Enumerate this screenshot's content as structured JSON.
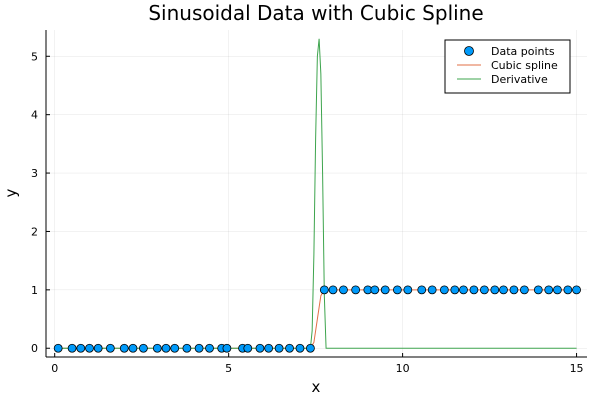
{
  "chart_data": {
    "type": "line",
    "title": "Sinusoidal Data with Cubic Spline",
    "xlabel": "x",
    "ylabel": "y",
    "xlim": [
      -0.25,
      15.3
    ],
    "ylim": [
      -0.15,
      5.45
    ],
    "xticks": [
      0,
      5,
      10,
      15
    ],
    "xtick_labels": [
      "0",
      "5",
      "10",
      "15"
    ],
    "yticks": [
      0,
      1,
      2,
      3,
      4,
      5
    ],
    "ytick_labels": [
      "0",
      "1",
      "2",
      "3",
      "4",
      "5"
    ],
    "grid": true,
    "legend_position": "top-right",
    "series": [
      {
        "name": "Data points",
        "kind": "scatter",
        "color": "#009AFA",
        "x": [
          0.1,
          0.5,
          0.75,
          1.0,
          1.25,
          1.6,
          2.0,
          2.25,
          2.55,
          2.95,
          3.2,
          3.45,
          3.8,
          4.15,
          4.45,
          4.8,
          4.95,
          5.4,
          5.55,
          5.9,
          6.15,
          6.45,
          6.75,
          7.05,
          7.35,
          7.75,
          8.0,
          8.3,
          8.65,
          9.0,
          9.2,
          9.5,
          9.85,
          10.15,
          10.55,
          10.85,
          11.2,
          11.5,
          11.75,
          12.05,
          12.35,
          12.65,
          12.9,
          13.2,
          13.5,
          13.9,
          14.2,
          14.45,
          14.75,
          15.0
        ],
        "y": [
          0,
          0,
          0,
          0,
          0,
          0,
          0,
          0,
          0,
          0,
          0,
          0,
          0,
          0,
          0,
          0,
          0,
          0,
          0,
          0,
          0,
          0,
          0,
          0,
          0,
          1,
          1,
          1,
          1,
          1,
          1,
          1,
          1,
          1,
          1,
          1,
          1,
          1,
          1,
          1,
          1,
          1,
          1,
          1,
          1,
          1,
          1,
          1,
          1,
          1
        ]
      },
      {
        "name": "Cubic spline",
        "kind": "line",
        "color": "#E26F46",
        "x": [
          0.1,
          7.35,
          7.45,
          7.55,
          7.65,
          7.75,
          15.0
        ],
        "y": [
          0,
          0,
          0.1,
          0.5,
          0.9,
          1,
          1
        ]
      },
      {
        "name": "Derivative",
        "kind": "line",
        "color": "#3DA44D",
        "x": [
          0.1,
          7.35,
          7.4,
          7.45,
          7.5,
          7.55,
          7.6,
          7.65,
          7.7,
          7.75,
          7.8,
          15.0
        ],
        "y": [
          0,
          0,
          0.3,
          1.6,
          3.6,
          5.0,
          5.3,
          4.7,
          3.0,
          0.9,
          0,
          0
        ]
      }
    ]
  }
}
